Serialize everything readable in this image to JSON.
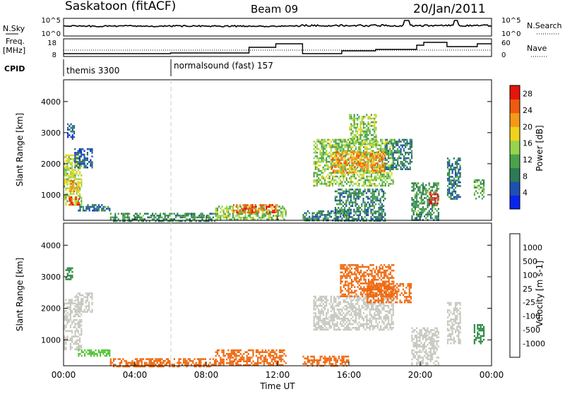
{
  "header": {
    "station": "Saskatoon (fitACF)",
    "beam": "Beam 09",
    "date": "20/Jan/2011"
  },
  "top_panel": {
    "left_label": "N.Sky",
    "left_ticks": [
      "10^5",
      "10^0"
    ],
    "right_ticks": [
      "10^5",
      "10^0"
    ],
    "right_label": "N.Search",
    "freq_label": "Freq.",
    "freq_unit": "[MHz]",
    "freq_ticks": [
      "18",
      "8"
    ],
    "nave_ticks": [
      "60",
      "0"
    ],
    "nave_label": "Nave",
    "cpid_label": "CPID",
    "cpid_segments": [
      {
        "name": "themis 3300",
        "start_hour": 0
      },
      {
        "name": "normalsound (fast) 157",
        "start_hour": 6
      }
    ]
  },
  "colors": {
    "power_scale": [
      "#0a24f0",
      "#1f4fb0",
      "#2d7a55",
      "#4aa24d",
      "#97d44a",
      "#f0d21b",
      "#f49a16",
      "#f05a10",
      "#e6140d"
    ],
    "velocity_scale": [
      "#1a2fbf",
      "#2d60c0",
      "#2f8a45",
      "#55c43a",
      "#c8c8c0",
      "#c8c8c0",
      "#f3a21a",
      "#ef6a10",
      "#e6140d"
    ]
  },
  "chart_data": [
    {
      "type": "heatmap",
      "title": "Power",
      "xlabel": "",
      "ylabel": "Slant Range [km]",
      "x_unit": "hours UT",
      "xlim": [
        0,
        24
      ],
      "ylim": [
        180,
        4700
      ],
      "x_ticks": [
        "00:00",
        "04:00",
        "08:00",
        "12:00",
        "16:00",
        "20:00",
        "00:00"
      ],
      "y_ticks": [
        1000,
        2000,
        3000,
        4000
      ],
      "colorbar_label": "Power [dB]",
      "colorbar_ticks": [
        4,
        8,
        12,
        16,
        20,
        24,
        28
      ],
      "colorbar_range": [
        0,
        30
      ],
      "regions": [
        {
          "t": [
            0.0,
            1.0
          ],
          "r": [
            700,
            2300
          ],
          "v": 16
        },
        {
          "t": [
            0.3,
            0.9
          ],
          "r": [
            700,
            950
          ],
          "v": 27
        },
        {
          "t": [
            0.3,
            0.9
          ],
          "r": [
            1100,
            1500
          ],
          "v": 20
        },
        {
          "t": [
            0.6,
            1.6
          ],
          "r": [
            1900,
            2500
          ],
          "v": 6
        },
        {
          "t": [
            0.2,
            0.6
          ],
          "r": [
            2800,
            3300
          ],
          "v": 5
        },
        {
          "t": [
            0.8,
            2.6
          ],
          "r": [
            500,
            700
          ],
          "v": 7
        },
        {
          "t": [
            2.6,
            8.5
          ],
          "r": [
            180,
            420
          ],
          "v": 10
        },
        {
          "t": [
            8.5,
            12.5
          ],
          "r": [
            180,
            650
          ],
          "v": 14
        },
        {
          "t": [
            9.5,
            12.0
          ],
          "r": [
            450,
            700
          ],
          "v": 26
        },
        {
          "t": [
            13.4,
            16.0
          ],
          "r": [
            180,
            500
          ],
          "v": 8
        },
        {
          "t": [
            14.0,
            18.5
          ],
          "r": [
            1300,
            2800
          ],
          "v": 14
        },
        {
          "t": [
            15.0,
            18.0
          ],
          "r": [
            1700,
            2400
          ],
          "v": 22
        },
        {
          "t": [
            16.0,
            17.5
          ],
          "r": [
            2600,
            3600
          ],
          "v": 14
        },
        {
          "t": [
            15.2,
            18.0
          ],
          "r": [
            180,
            1200
          ],
          "v": 9
        },
        {
          "t": [
            18.0,
            19.5
          ],
          "r": [
            1800,
            2800
          ],
          "v": 8
        },
        {
          "t": [
            19.5,
            21.0
          ],
          "r": [
            180,
            1400
          ],
          "v": 10
        },
        {
          "t": [
            20.5,
            21.0
          ],
          "r": [
            700,
            1100
          ],
          "v": 27
        },
        {
          "t": [
            21.5,
            22.2
          ],
          "r": [
            900,
            2200
          ],
          "v": 8
        },
        {
          "t": [
            23.0,
            23.6
          ],
          "r": [
            900,
            1500
          ],
          "v": 12
        }
      ]
    },
    {
      "type": "heatmap",
      "title": "Velocity",
      "xlabel": "Time UT",
      "ylabel": "Slant Range [km]",
      "x_unit": "hours UT",
      "xlim": [
        0,
        24
      ],
      "ylim": [
        180,
        4700
      ],
      "x_ticks": [
        "00:00",
        "04:00",
        "08:00",
        "12:00",
        "16:00",
        "20:00",
        "00:00"
      ],
      "y_ticks": [
        1000,
        2000,
        3000,
        4000
      ],
      "colorbar_label": "Velocity [m s-1]",
      "colorbar_ticks": [
        "1000",
        "500",
        "100",
        "25",
        "-25",
        "-100",
        "-500",
        "-1000"
      ],
      "regions": [
        {
          "t": [
            0.0,
            1.0
          ],
          "r": [
            700,
            2300
          ],
          "v": 0
        },
        {
          "t": [
            0.6,
            1.6
          ],
          "r": [
            1900,
            2500
          ],
          "v": 0
        },
        {
          "t": [
            0.1,
            0.5
          ],
          "r": [
            2900,
            3300
          ],
          "v": 200
        },
        {
          "t": [
            0.8,
            2.6
          ],
          "r": [
            500,
            700
          ],
          "v": 60
        },
        {
          "t": [
            2.6,
            8.5
          ],
          "r": [
            180,
            420
          ],
          "v": -150
        },
        {
          "t": [
            8.5,
            12.5
          ],
          "r": [
            180,
            700
          ],
          "v": -250
        },
        {
          "t": [
            13.4,
            16.0
          ],
          "r": [
            180,
            500
          ],
          "v": -120
        },
        {
          "t": [
            14.0,
            18.5
          ],
          "r": [
            1300,
            2400
          ],
          "v": 0
        },
        {
          "t": [
            15.5,
            18.5
          ],
          "r": [
            2400,
            3400
          ],
          "v": -300
        },
        {
          "t": [
            17.0,
            19.5
          ],
          "r": [
            2200,
            2800
          ],
          "v": -180
        },
        {
          "t": [
            19.5,
            21.0
          ],
          "r": [
            180,
            1400
          ],
          "v": 0
        },
        {
          "t": [
            21.5,
            22.2
          ],
          "r": [
            900,
            2200
          ],
          "v": 0
        },
        {
          "t": [
            23.0,
            23.6
          ],
          "r": [
            900,
            1500
          ],
          "v": 150
        }
      ]
    }
  ]
}
